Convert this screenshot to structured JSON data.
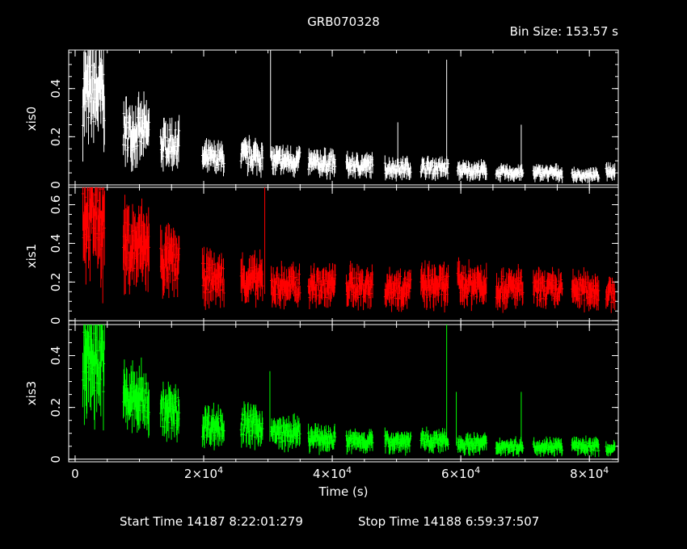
{
  "chart_data": {
    "type": "scatter",
    "title": "GRB070328",
    "bin_size_label": "Bin Size: 153.57 s",
    "xlabel": "Time (s)",
    "xlim": [
      -1000,
      84500
    ],
    "x_ticks": [
      {
        "value": 0,
        "base": "0",
        "exp": ""
      },
      {
        "value": 20000,
        "base": "2×10",
        "exp": "4"
      },
      {
        "value": 40000,
        "base": "4×10",
        "exp": "4"
      },
      {
        "value": 60000,
        "base": "6×10",
        "exp": "4"
      },
      {
        "value": 80000,
        "base": "8×10",
        "exp": "4"
      }
    ],
    "footer": {
      "start_label": "Start Time 14187  8:22:01:279",
      "stop_label": "Stop Time 14188  6:59:37:507"
    },
    "series": [
      {
        "name": "xis0",
        "color": "#ffffff",
        "ylim": [
          -0.01,
          0.56
        ],
        "y_ticks": [
          {
            "value": 0,
            "label": "0"
          },
          {
            "value": 0.2,
            "label": "0.2"
          },
          {
            "value": 0.4,
            "label": "0.4"
          }
        ],
        "clusters": [
          [
            1200,
            4600,
            0.38
          ],
          [
            7500,
            11500,
            0.22
          ],
          [
            13300,
            16200,
            0.17
          ],
          [
            19800,
            23200,
            0.11
          ],
          [
            25800,
            29200,
            0.12
          ],
          [
            30500,
            35000,
            0.1
          ],
          [
            36300,
            40500,
            0.09
          ],
          [
            42200,
            46300,
            0.08
          ],
          [
            48200,
            52200,
            0.07
          ],
          [
            53800,
            58100,
            0.07
          ],
          [
            59500,
            64000,
            0.06
          ],
          [
            65500,
            69700,
            0.05
          ],
          [
            71300,
            75800,
            0.05
          ],
          [
            77300,
            81500,
            0.04
          ],
          [
            82600,
            84000,
            0.06
          ]
        ],
        "spikes": [
          [
            30400,
            0.56
          ],
          [
            50200,
            0.26
          ],
          [
            57800,
            0.52
          ],
          [
            69400,
            0.25
          ]
        ]
      },
      {
        "name": "xis1",
        "color": "#ff0000",
        "ylim": [
          -0.02,
          0.69
        ],
        "y_ticks": [
          {
            "value": 0,
            "label": "0"
          },
          {
            "value": 0.2,
            "label": "0.2"
          },
          {
            "value": 0.4,
            "label": "0.4"
          },
          {
            "value": 0.6,
            "label": "0.6"
          }
        ],
        "clusters": [
          [
            1200,
            4600,
            0.56
          ],
          [
            7500,
            11500,
            0.38
          ],
          [
            13300,
            16200,
            0.3
          ],
          [
            19800,
            23200,
            0.22
          ],
          [
            25800,
            29200,
            0.21
          ],
          [
            30500,
            35000,
            0.18
          ],
          [
            36300,
            40500,
            0.18
          ],
          [
            42200,
            46300,
            0.18
          ],
          [
            48200,
            52200,
            0.17
          ],
          [
            53800,
            58100,
            0.18
          ],
          [
            59500,
            64000,
            0.19
          ],
          [
            65500,
            69700,
            0.17
          ],
          [
            71300,
            75800,
            0.16
          ],
          [
            77300,
            81500,
            0.16
          ],
          [
            82600,
            84000,
            0.14
          ]
        ],
        "spikes": [
          [
            29500,
            0.69
          ],
          [
            4300,
            0.45
          ]
        ]
      },
      {
        "name": "xis3",
        "color": "#00ff00",
        "ylim": [
          -0.01,
          0.52
        ],
        "y_ticks": [
          {
            "value": 0,
            "label": "0"
          },
          {
            "value": 0.2,
            "label": "0.2"
          },
          {
            "value": 0.4,
            "label": "0.4"
          }
        ],
        "clusters": [
          [
            1200,
            4600,
            0.4
          ],
          [
            7500,
            11500,
            0.23
          ],
          [
            13300,
            16200,
            0.18
          ],
          [
            19800,
            23200,
            0.13
          ],
          [
            25800,
            29200,
            0.13
          ],
          [
            30500,
            35000,
            0.1
          ],
          [
            36300,
            40500,
            0.08
          ],
          [
            42200,
            46300,
            0.07
          ],
          [
            48200,
            52200,
            0.07
          ],
          [
            53800,
            58100,
            0.07
          ],
          [
            59500,
            64000,
            0.06
          ],
          [
            65500,
            69700,
            0.05
          ],
          [
            71300,
            75800,
            0.05
          ],
          [
            77300,
            81500,
            0.05
          ],
          [
            82600,
            84000,
            0.04
          ]
        ],
        "spikes": [
          [
            30300,
            0.34
          ],
          [
            57800,
            0.52
          ],
          [
            59300,
            0.26
          ],
          [
            69400,
            0.26
          ]
        ]
      }
    ]
  }
}
